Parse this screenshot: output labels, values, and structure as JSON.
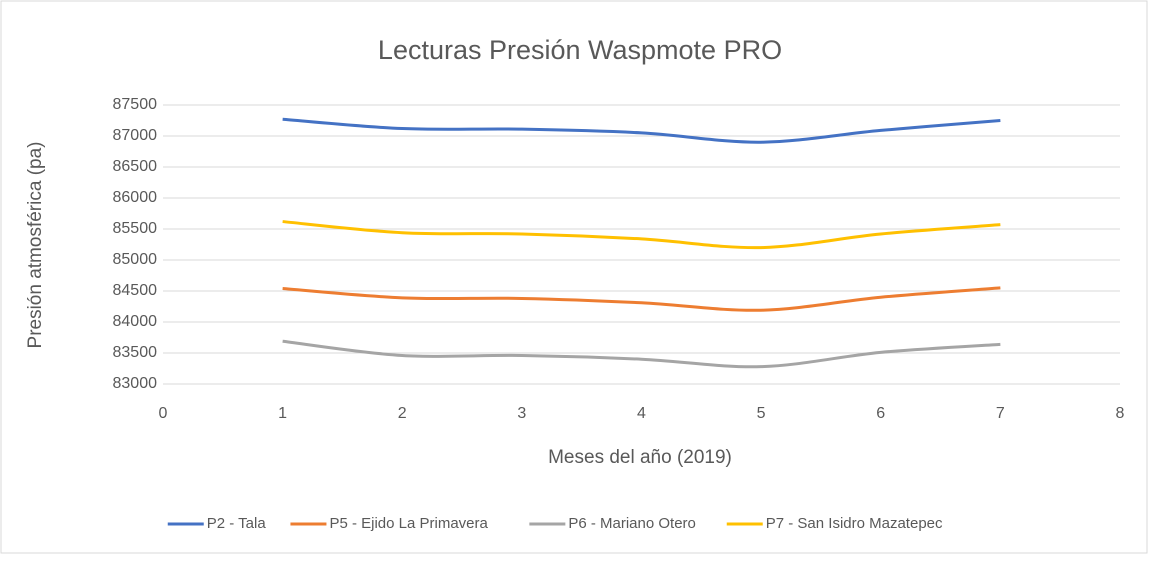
{
  "chart_data": {
    "type": "line",
    "title": "Lecturas Presión Waspmote PRO",
    "xlabel": "Meses del año (2019)",
    "ylabel": "Presión atmosférica (pa)",
    "x": [
      1,
      2,
      3,
      4,
      5,
      6,
      7
    ],
    "series": [
      {
        "name": "P2 - Tala",
        "color": "#4472c4",
        "values": [
          87270,
          87120,
          87110,
          87050,
          86900,
          87090,
          87250
        ]
      },
      {
        "name": "P5 - Ejido La Primavera",
        "color": "#ed7d31",
        "values": [
          84540,
          84390,
          84380,
          84310,
          84190,
          84400,
          84550
        ]
      },
      {
        "name": "P6 - Mariano Otero",
        "color": "#a5a5a5",
        "values": [
          83690,
          83460,
          83460,
          83400,
          83280,
          83510,
          83640
        ]
      },
      {
        "name": "P7 - San Isidro Mazatepec",
        "color": "#ffc000",
        "values": [
          85620,
          85440,
          85420,
          85340,
          85200,
          85420,
          85570
        ]
      }
    ],
    "xlim": [
      0,
      8
    ],
    "xticks": [
      0,
      1,
      2,
      3,
      4,
      5,
      6,
      7,
      8
    ],
    "ylim": [
      83000,
      87500
    ],
    "yticks": [
      83000,
      83500,
      84000,
      84500,
      85000,
      85500,
      86000,
      86500,
      87000,
      87500
    ],
    "grid": true,
    "smooth": true,
    "legend": "bottom"
  }
}
